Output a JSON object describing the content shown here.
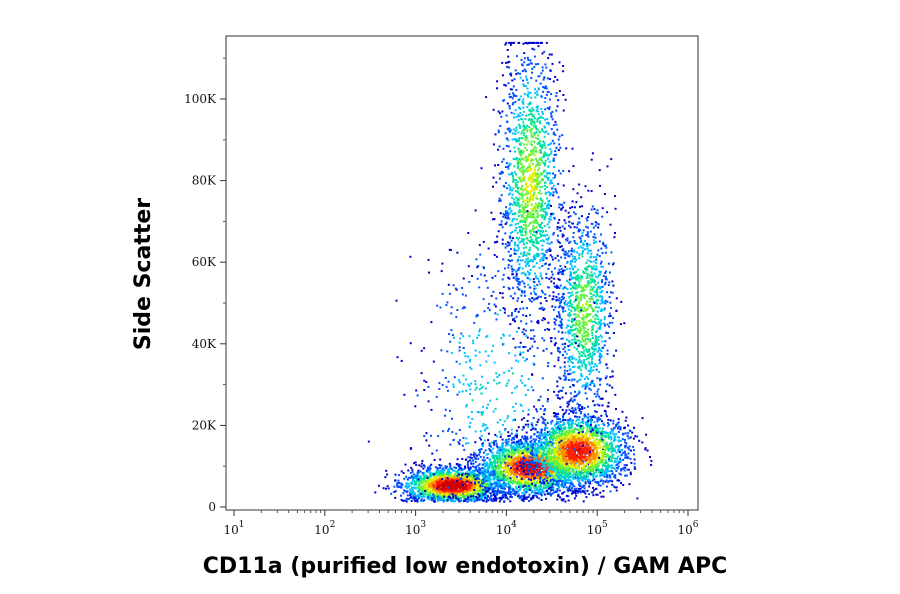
{
  "chart_data": {
    "type": "scatter",
    "subtype": "flow-cytometry density dot plot",
    "title": "",
    "xlabel": "CD11a (purified low endotoxin) / GAM APC",
    "ylabel": "Side Scatter",
    "x_scale": "log",
    "xlim": [
      10,
      1000000
    ],
    "x_ticks": [
      {
        "value": 10,
        "base": "10",
        "exp": "1"
      },
      {
        "value": 100,
        "base": "10",
        "exp": "2"
      },
      {
        "value": 1000,
        "base": "10",
        "exp": "3"
      },
      {
        "value": 10000,
        "base": "10",
        "exp": "4"
      },
      {
        "value": 100000,
        "base": "10",
        "exp": "5"
      },
      {
        "value": 1000000,
        "base": "10",
        "exp": "6"
      }
    ],
    "y_scale": "linear",
    "ylim": [
      0,
      115000
    ],
    "y_ticks": [
      {
        "value": 0,
        "label": "0"
      },
      {
        "value": 20000,
        "label": "20K"
      },
      {
        "value": 40000,
        "label": "40K"
      },
      {
        "value": 60000,
        "label": "60K"
      },
      {
        "value": 80000,
        "label": "80K"
      },
      {
        "value": 100000,
        "label": "100K"
      }
    ],
    "grid": false,
    "colormap": [
      "#0000c8",
      "#0050ff",
      "#00c0ff",
      "#00e0a0",
      "#60f040",
      "#e0f000",
      "#ff9000",
      "#ff2000",
      "#d00000"
    ],
    "populations": [
      {
        "x_center": 2500,
        "y_center": 5500,
        "density": "highest"
      },
      {
        "x_center": 18000,
        "y_center": 10000,
        "density": "high"
      },
      {
        "x_center": 60000,
        "y_center": 14000,
        "density": "high"
      },
      {
        "x_center": 18000,
        "y_center": 80000,
        "density": "medium"
      },
      {
        "x_center": 70000,
        "y_center": 48000,
        "density": "medium"
      }
    ]
  }
}
